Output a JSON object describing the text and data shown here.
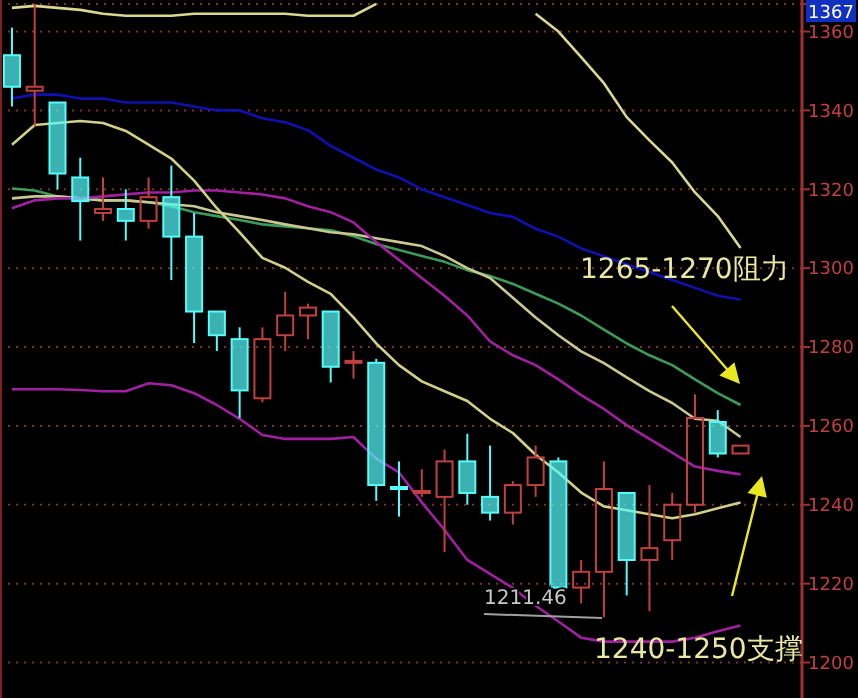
{
  "chart_data": {
    "type": "candlestick",
    "categories": [
      null,
      null,
      null,
      null,
      null,
      null,
      null,
      null,
      null,
      null,
      null,
      null,
      null,
      null,
      null,
      null,
      null,
      null,
      null,
      null,
      null,
      null,
      null,
      null,
      null,
      null,
      null,
      null,
      null,
      null,
      null,
      null,
      null
    ],
    "ohlc": [
      [
        1354,
        1361,
        1341,
        1346
      ],
      [
        1345,
        1367,
        1336,
        1346
      ],
      [
        1342,
        1342,
        1320,
        1324
      ],
      [
        1323,
        1328,
        1307,
        1317
      ],
      [
        1314,
        1323,
        1312,
        1315
      ],
      [
        1315,
        1320,
        1307,
        1312
      ],
      [
        1312,
        1323,
        1310,
        1318
      ],
      [
        1318,
        1326,
        1297,
        1308
      ],
      [
        1308,
        1314,
        1281,
        1289
      ],
      [
        1289,
        1289,
        1279,
        1283
      ],
      [
        1282,
        1285,
        1262,
        1269
      ],
      [
        1267,
        1285,
        1266,
        1282
      ],
      [
        1283,
        1294,
        1279,
        1288
      ],
      [
        1288,
        1291,
        1282,
        1290
      ],
      [
        1289,
        1289,
        1271,
        1275
      ],
      [
        1276,
        1279,
        1272,
        1276.5
      ],
      [
        1276,
        1277,
        1241,
        1245
      ],
      [
        1244.5,
        1251,
        1237,
        1244
      ],
      [
        1243,
        1249,
        1242,
        1243.5
      ],
      [
        1242,
        1254,
        1228,
        1251
      ],
      [
        1251,
        1258,
        1240,
        1243
      ],
      [
        1242,
        1255,
        1236,
        1238
      ],
      [
        1238,
        1246,
        1235,
        1245
      ],
      [
        1245,
        1255,
        1242,
        1252
      ],
      [
        1251,
        1252,
        1218,
        1219
      ],
      [
        1219,
        1226,
        1215,
        1223
      ],
      [
        1223,
        1251,
        1211.46,
        1244
      ],
      [
        1243,
        1243,
        1217,
        1226
      ],
      [
        1226,
        1245,
        1213,
        1229
      ],
      [
        1231,
        1243,
        1226,
        1240
      ],
      [
        1240,
        1268,
        1238,
        1262
      ],
      [
        1261,
        1264,
        1252,
        1253
      ],
      [
        1253,
        1255,
        1253,
        1255
      ]
    ],
    "colors": [
      "#54fcfc",
      "#c04040",
      "#54fcfc",
      "#54fcfc",
      "#c04040",
      "#54fcfc",
      "#c04040",
      "#54fcfc",
      "#54fcfc",
      "#54fcfc",
      "#54fcfc",
      "#c04040",
      "#c04040",
      "#c04040",
      "#54fcfc",
      "#c04040",
      "#54fcfc",
      "#54fcfc",
      "#c04040",
      "#c04040",
      "#54fcfc",
      "#54fcfc",
      "#c04040",
      "#c04040",
      "#54fcfc",
      "#c04040",
      "#c04040",
      "#54fcfc",
      "#c04040",
      "#c04040",
      "#c04040",
      "#54fcfc",
      "#c04040"
    ],
    "series": [
      {
        "type": "line",
        "color": "#d8d890",
        "values": [
          1366,
          1366.5,
          1366,
          1365.5,
          1364.5,
          1364,
          1364,
          1364,
          1364.5,
          1364.5,
          1364.5,
          1364.5,
          1364.5,
          1364,
          1364,
          1364,
          1367,
          null,
          null,
          null,
          null,
          null,
          null,
          1364.5,
          1360,
          1353.5,
          1346.9,
          1338.3,
          1332.4,
          1326.8,
          1319.2,
          1313.2,
          1305.1
        ]
      },
      {
        "type": "line",
        "color": "#1010b0",
        "values": [
          1343,
          1344,
          1344,
          1343,
          1343,
          1342,
          1342,
          1342,
          1341,
          1340,
          1340,
          1338,
          1337,
          1335,
          1331,
          1328,
          1325,
          1323,
          1320,
          1318,
          1316,
          1314,
          1313,
          1310,
          1308,
          1305,
          1303,
          1301,
          1299,
          1297,
          1295,
          1293,
          1292
        ]
      },
      {
        "type": "line",
        "color": "#3c9a5a",
        "values": [
          1320.2,
          1319.7,
          1318.2,
          1317.7,
          1317.2,
          1317.2,
          1316.7,
          1315.7,
          1314.2,
          1313.2,
          1312.2,
          1311.1,
          1310.6,
          1310.1,
          1309.6,
          1308.1,
          1306.1,
          1304.6,
          1303.1,
          1301.6,
          1299.5,
          1298,
          1296,
          1293.5,
          1291,
          1288,
          1284.4,
          1280.9,
          1277.9,
          1275.4,
          1271.8,
          1268.3,
          1265.3
        ]
      },
      {
        "type": "line",
        "color": "#c8c890",
        "values": [
          1317.7,
          1318.2,
          1318.2,
          1317.7,
          1317.2,
          1317.2,
          1316.7,
          1316.2,
          1315.7,
          1314.2,
          1313.2,
          1312.2,
          1311.1,
          1310.1,
          1309.1,
          1308.6,
          1307.6,
          1306.6,
          1305.6,
          1303.1,
          1300,
          1297.5,
          1292.5,
          1287.5,
          1283,
          1278.9,
          1275.9,
          1272.3,
          1268.8,
          1265.8,
          1261.8,
          1261.3,
          1257.2
        ]
      },
      {
        "type": "line",
        "color": "#a020a0",
        "values": [
          1315.2,
          1317.2,
          1317.7,
          1317.7,
          1318.2,
          1318.7,
          1319.2,
          1319.2,
          1319.7,
          1319.7,
          1319.2,
          1318.7,
          1317.7,
          1315.7,
          1314.2,
          1311.6,
          1306.6,
          1302.1,
          1297.5,
          1293,
          1288,
          1281.4,
          1277.9,
          1275.4,
          1271.8,
          1267.8,
          1264.3,
          1260.2,
          1256.7,
          1253.2,
          1249.7,
          1248.6,
          1247.7
        ]
      },
      {
        "type": "line",
        "color": "#d0d088",
        "values": [
          1331.3,
          1336.3,
          1336.8,
          1337.3,
          1336.8,
          1334.8,
          1331.3,
          1327.8,
          1322.2,
          1315.2,
          1309.1,
          1302.6,
          1300.1,
          1296.5,
          1293.5,
          1287.5,
          1280.9,
          1275.4,
          1271.3,
          1268.8,
          1266.3,
          1261.8,
          1258.2,
          1252.7,
          1248.2,
          1243.1,
          1239.6,
          1238.6,
          1237.6,
          1236.6,
          1237.6,
          1239.1,
          1240.6
        ]
      },
      {
        "type": "line",
        "color": "#a020a0",
        "values": [
          1269.3,
          1269.3,
          1269.3,
          1269.1,
          1268.8,
          1268.8,
          1270.8,
          1270.3,
          1268.3,
          1265.3,
          1261.8,
          1257.7,
          1256.7,
          1256.7,
          1256.7,
          1257.2,
          1251.7,
          1248.2,
          1240.6,
          1233.6,
          1226,
          1222.5,
          1218.9,
          1214.4,
          1210.4,
          1206.3,
          1205.3,
          1205.3,
          1205.3,
          1205.3,
          1206.3,
          1207.9,
          1209.4
        ]
      }
    ],
    "ylim": [
      1191,
      1368
    ],
    "yticks": [
      1200,
      1220,
      1240,
      1260,
      1280,
      1300,
      1320,
      1340,
      1360,
      1367
    ],
    "grid": "y",
    "annotations": [
      "1265-1270阻力",
      "1240-1250支撑",
      "1211.46"
    ]
  }
}
